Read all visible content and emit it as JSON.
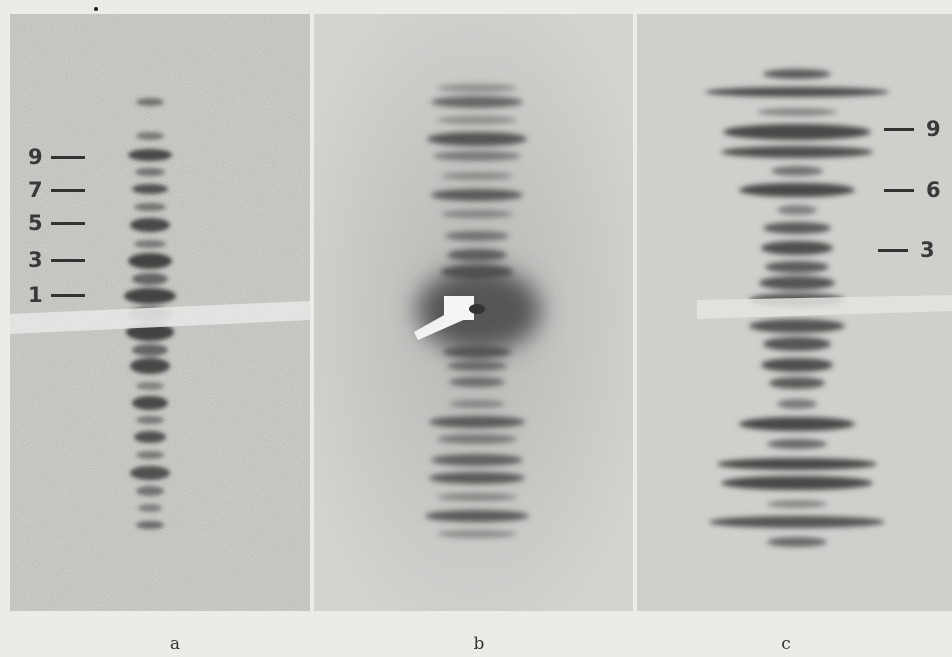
{
  "figure": {
    "captions": [
      "a",
      "b",
      "c"
    ],
    "panel_a_markers": [
      "9",
      "7",
      "5",
      "3",
      "1"
    ],
    "panel_c_markers": [
      "9",
      "6",
      "3"
    ]
  }
}
